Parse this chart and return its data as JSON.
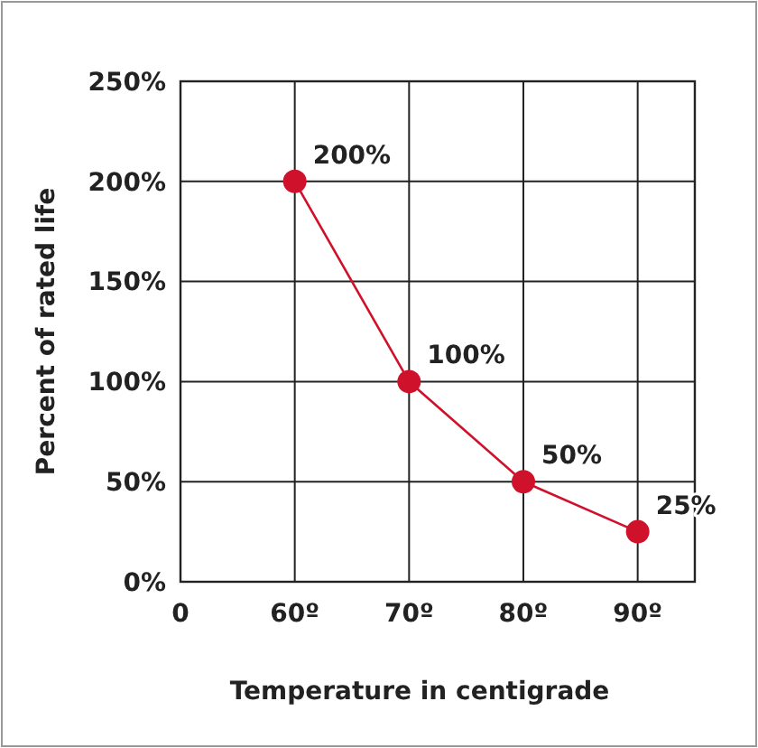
{
  "chart_data": {
    "type": "line",
    "xlabel": "Temperature in centigrade",
    "ylabel": "Percent of rated life",
    "categories": [
      "0",
      "60º",
      "70º",
      "80º",
      "90º"
    ],
    "series": [
      {
        "color": "#d0112b",
        "values": [
          null,
          200,
          100,
          50,
          25
        ],
        "value_labels": [
          null,
          "200%",
          "100%",
          "50%",
          "25%"
        ]
      }
    ],
    "ylim": [
      0,
      250
    ],
    "yticks": [
      {
        "value": 0,
        "label": "0%"
      },
      {
        "value": 50,
        "label": "50%"
      },
      {
        "value": 100,
        "label": "100%"
      },
      {
        "value": 150,
        "label": "150%"
      },
      {
        "value": 200,
        "label": "200%"
      },
      {
        "value": 250,
        "label": "250%"
      }
    ],
    "grid": true,
    "marker": "circle",
    "line_style": "solid"
  }
}
